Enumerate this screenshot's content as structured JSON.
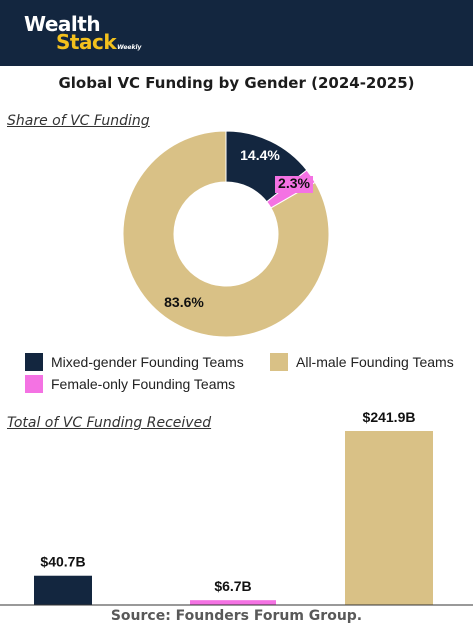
{
  "brand": {
    "line1": "Wealth",
    "line2": "Stack",
    "sub": "Weekly"
  },
  "title": "Global VC Funding by Gender (2024-2025)",
  "source": "Source: Founders Forum Group.",
  "colors": {
    "mixed": "#13263f",
    "female": "#f472e3",
    "male": "#d9c186",
    "header": "#13263f"
  },
  "chart_data": [
    {
      "type": "pie",
      "subtitle": "Share of VC Funding",
      "categories": [
        "Mixed-gender Founding Teams",
        "Female-only Founding Teams",
        "All-male Founding Teams"
      ],
      "values": [
        14.4,
        2.3,
        83.6
      ],
      "labels": [
        "14.4%",
        "2.3%",
        "83.6%"
      ],
      "legend": "bottom"
    },
    {
      "type": "bar",
      "subtitle": "Total of VC Funding Received",
      "categories": [
        "Mixed-gender Founding Teams",
        "Female-only Founding Teams",
        "All-male Founding Teams"
      ],
      "values": [
        40.7,
        6.7,
        241.9
      ],
      "labels": [
        "$40.7B",
        "$6.7B",
        "$241.9B"
      ],
      "unit": "$B",
      "ylim": [
        0,
        241.9
      ]
    }
  ],
  "legend": [
    {
      "label": "Mixed-gender Founding Teams",
      "color": "#13263f"
    },
    {
      "label": "All-male Founding Teams",
      "color": "#d9c186"
    },
    {
      "label": "Female-only Founding Teams",
      "color": "#f472e3"
    }
  ]
}
